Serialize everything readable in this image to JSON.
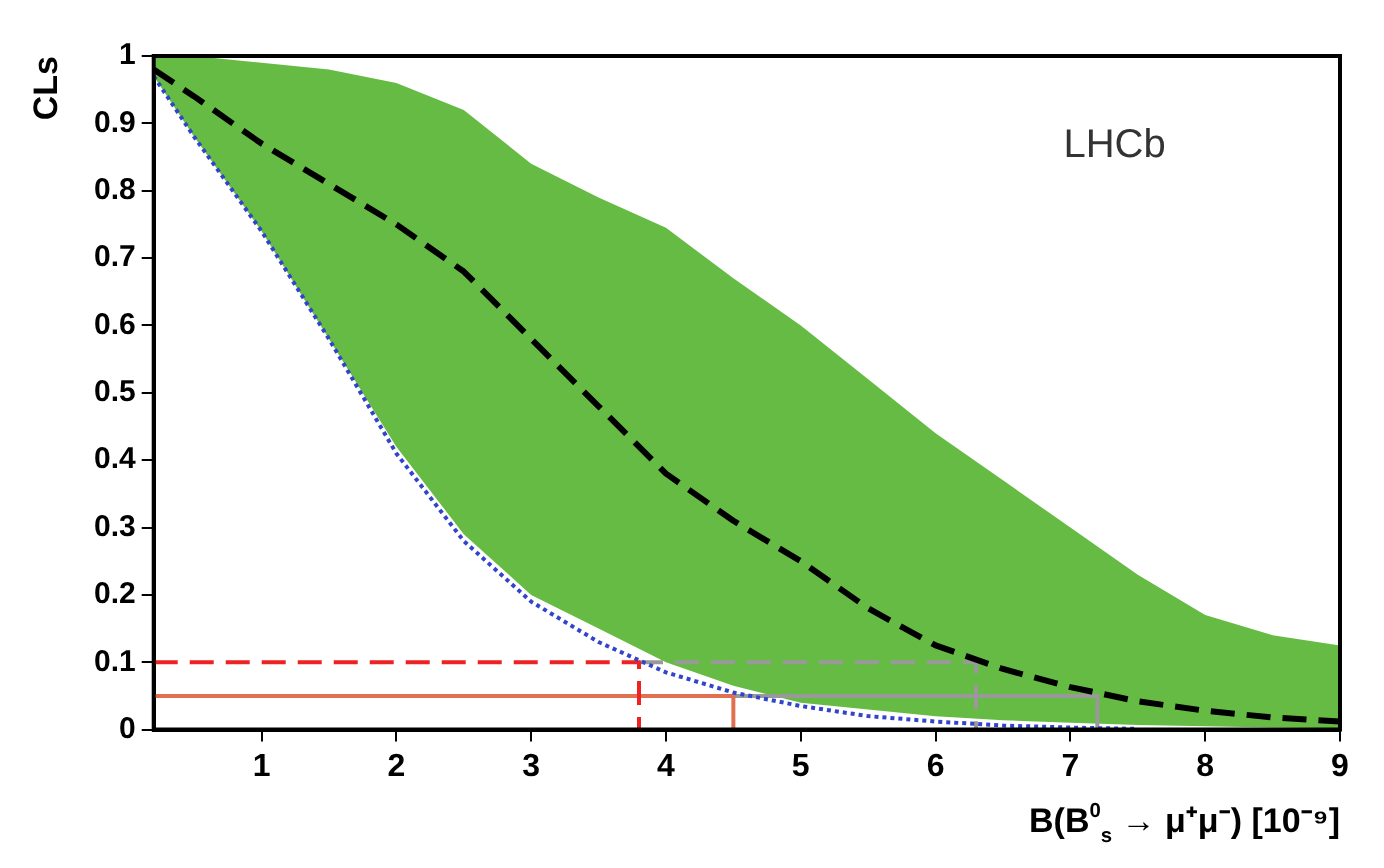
{
  "chart_data": {
    "type": "line",
    "xlabel": "B(B$^{0}$$_{s}$ → μ⁺μ⁻) [10⁻⁹]",
    "ylabel": "CLs",
    "annotations": [
      "LHCb"
    ],
    "x": [
      0.2,
      0.5,
      1,
      1.5,
      2,
      2.5,
      3,
      3.5,
      4,
      4.5,
      5,
      5.5,
      6,
      6.5,
      7,
      7.5,
      8,
      8.5,
      9
    ],
    "xlim": [
      0.2,
      9
    ],
    "xticks": [
      1,
      2,
      3,
      4,
      5,
      6,
      7,
      8,
      9
    ],
    "ylim": [
      0,
      1
    ],
    "yticks": [
      0,
      0.1,
      0.2,
      0.3,
      0.4,
      0.5,
      0.6,
      0.7,
      0.8,
      0.9,
      1
    ],
    "grid": false,
    "legend": false,
    "marker": "none",
    "series": [
      {
        "color": "#000000",
        "line_style": "dashed",
        "values": [
          0.98,
          0.94,
          0.87,
          0.81,
          0.75,
          0.68,
          0.58,
          0.48,
          0.38,
          0.31,
          0.25,
          0.18,
          0.125,
          0.09,
          0.063,
          0.042,
          0.028,
          0.018,
          0.012
        ],
        "lower": [
          0.97,
          0.88,
          0.74,
          0.58,
          0.42,
          0.29,
          0.2,
          0.15,
          0.1,
          0.065,
          0.04,
          0.03,
          0.02,
          0.014,
          0.01,
          0.007,
          0.005,
          0.003,
          0.002
        ],
        "upper": [
          1,
          1,
          0.99,
          0.98,
          0.96,
          0.92,
          0.84,
          0.79,
          0.745,
          0.67,
          0.6,
          0.52,
          0.44,
          0.37,
          0.3,
          0.23,
          0.17,
          0.14,
          0.125
        ]
      },
      {
        "color": "#3344cc",
        "line_style": "dotted",
        "x": [
          0.2,
          0.5,
          1,
          1.5,
          2,
          2.5,
          3,
          3.5,
          4,
          4.5,
          5,
          5.5,
          6,
          6.5,
          7,
          7.5
        ],
        "values": [
          0.97,
          0.88,
          0.74,
          0.58,
          0.41,
          0.28,
          0.19,
          0.13,
          0.085,
          0.055,
          0.035,
          0.02,
          0.012,
          0.006,
          0.003,
          0.001
        ]
      },
      {
        "color": "#ee2222",
        "line_style": "dashed",
        "x": [
          0.2,
          3.8,
          3.8
        ],
        "values": [
          0.1,
          0.1,
          0
        ]
      },
      {
        "color": "#e07050",
        "line_style": "solid",
        "x": [
          0.2,
          4.5,
          4.5
        ],
        "values": [
          0.05,
          0.05,
          0
        ]
      },
      {
        "color": "#999999",
        "line_style": "dashed",
        "x": [
          3.8,
          6.3,
          6.3
        ],
        "values": [
          0.1,
          0.1,
          0
        ]
      },
      {
        "color": "#999999",
        "line_style": "solid",
        "x": [
          4.5,
          7.2,
          7.2
        ],
        "values": [
          0.05,
          0.05,
          0
        ]
      }
    ]
  }
}
